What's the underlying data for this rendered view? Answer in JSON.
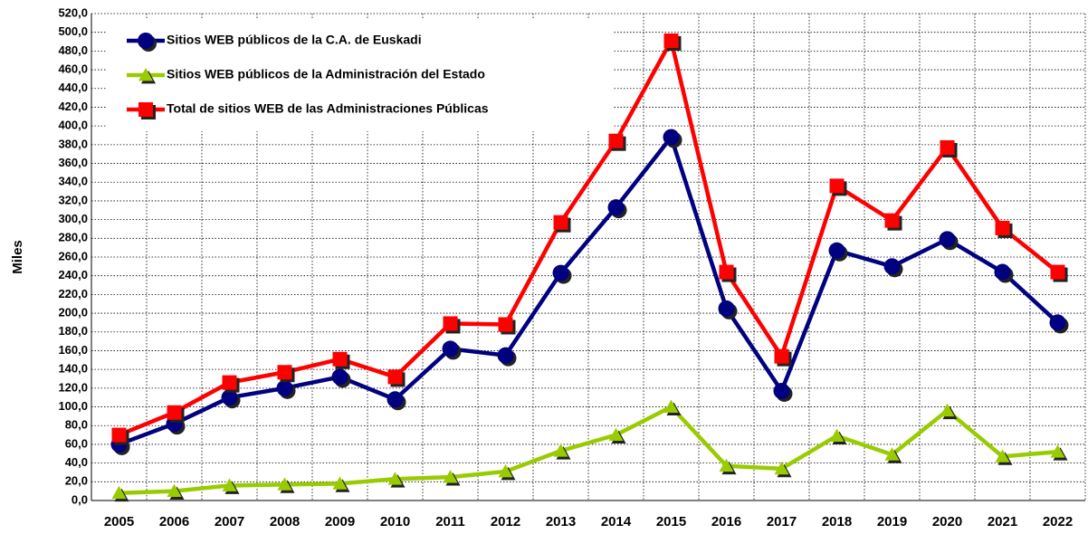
{
  "chart_data": {
    "type": "line",
    "y_axis_label": "Miles",
    "categories": [
      "2005",
      "2006",
      "2007",
      "2008",
      "2009",
      "2010",
      "2011",
      "2012",
      "2013",
      "2014",
      "2015",
      "2016",
      "2017",
      "2018",
      "2019",
      "2020",
      "2021",
      "2022"
    ],
    "series": [
      {
        "name": "Sitios WEB públicos de la C.A. de Euskadi",
        "color": "#000080",
        "marker": "circle",
        "values": [
          60,
          82,
          110,
          120,
          132,
          108,
          162,
          155,
          243,
          313,
          388,
          205,
          117,
          267,
          250,
          279,
          244,
          190
        ]
      },
      {
        "name": "Sitios WEB públicos de la Administración del  Estado",
        "color": "#99cc00",
        "marker": "triangle",
        "values": [
          8,
          10,
          16,
          17,
          18,
          23,
          25,
          31,
          53,
          70,
          100,
          37,
          34,
          69,
          49,
          96,
          47,
          52
        ]
      },
      {
        "name": "Total de sitios WEB de las Administraciones Públicas",
        "color": "#ff0000",
        "marker": "square",
        "values": [
          70,
          94,
          126,
          137,
          151,
          132,
          189,
          188,
          297,
          384,
          491,
          244,
          154,
          336,
          299,
          377,
          291,
          244
        ]
      }
    ],
    "ylim": [
      0,
      520
    ],
    "yticks": [
      {
        "value": 0,
        "label": "0,0"
      },
      {
        "value": 20,
        "label": "20,0"
      },
      {
        "value": 40,
        "label": "40,0"
      },
      {
        "value": 60,
        "label": "60,0"
      },
      {
        "value": 80,
        "label": "80,0"
      },
      {
        "value": 100,
        "label": "100,0"
      },
      {
        "value": 120,
        "label": "120,0"
      },
      {
        "value": 140,
        "label": "140,0"
      },
      {
        "value": 160,
        "label": "160,0"
      },
      {
        "value": 180,
        "label": "180,0"
      },
      {
        "value": 200,
        "label": "200,0"
      },
      {
        "value": 220,
        "label": "220,0"
      },
      {
        "value": 240,
        "label": "240,0"
      },
      {
        "value": 260,
        "label": "260,0"
      },
      {
        "value": 280,
        "label": "280,0"
      },
      {
        "value": 300,
        "label": "300,0"
      },
      {
        "value": 320,
        "label": "320,0"
      },
      {
        "value": 340,
        "label": "340,0"
      },
      {
        "value": 360,
        "label": "360,0"
      },
      {
        "value": 380,
        "label": "380,0"
      },
      {
        "value": 400,
        "label": "400,0"
      },
      {
        "value": 420,
        "label": "420,0"
      },
      {
        "value": 440,
        "label": "440,0"
      },
      {
        "value": 460,
        "label": "460,0"
      },
      {
        "value": 480,
        "label": "480,0"
      },
      {
        "value": 500,
        "label": "500,0"
      },
      {
        "value": 520,
        "label": "520,0"
      }
    ],
    "grid": true,
    "legend": "upper left"
  }
}
